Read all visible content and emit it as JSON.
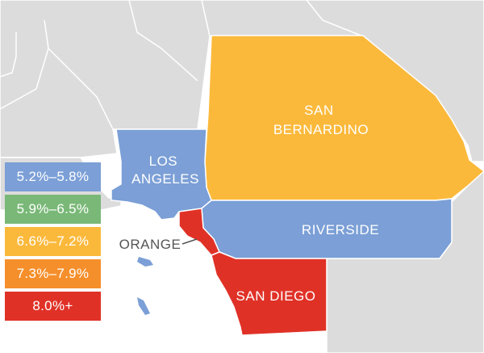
{
  "colors": {
    "background_land": "#dcdcdc",
    "border": "#ffffff",
    "water": "#ffffff",
    "text_light": "#ffffff",
    "text_dark": "#555555"
  },
  "counties": [
    {
      "name": "SAN BERNARDINO",
      "label_lines": [
        "SAN",
        "BERNARDINO"
      ],
      "color": "#fbb93b"
    },
    {
      "name": "LOS ANGELES",
      "label_lines": [
        "LOS",
        "ANGELES"
      ],
      "color": "#7b9fd6"
    },
    {
      "name": "RIVERSIDE",
      "label_lines": [
        "RIVERSIDE"
      ],
      "color": "#7b9fd6"
    },
    {
      "name": "ORANGE",
      "label_lines": [
        "ORANGE"
      ],
      "color": "#e03127"
    },
    {
      "name": "SAN DIEGO",
      "label_lines": [
        "SAN DIEGO"
      ],
      "color": "#e03127"
    }
  ],
  "legend": [
    {
      "label": "5.2%–5.8%",
      "color": "#7b9fd6"
    },
    {
      "label": "5.9%–6.5%",
      "color": "#79b877"
    },
    {
      "label": "6.6%–7.2%",
      "color": "#fbb93b"
    },
    {
      "label": "7.3%–7.9%",
      "color": "#f58f2b"
    },
    {
      "label": "8.0%+",
      "color": "#e03127"
    }
  ]
}
